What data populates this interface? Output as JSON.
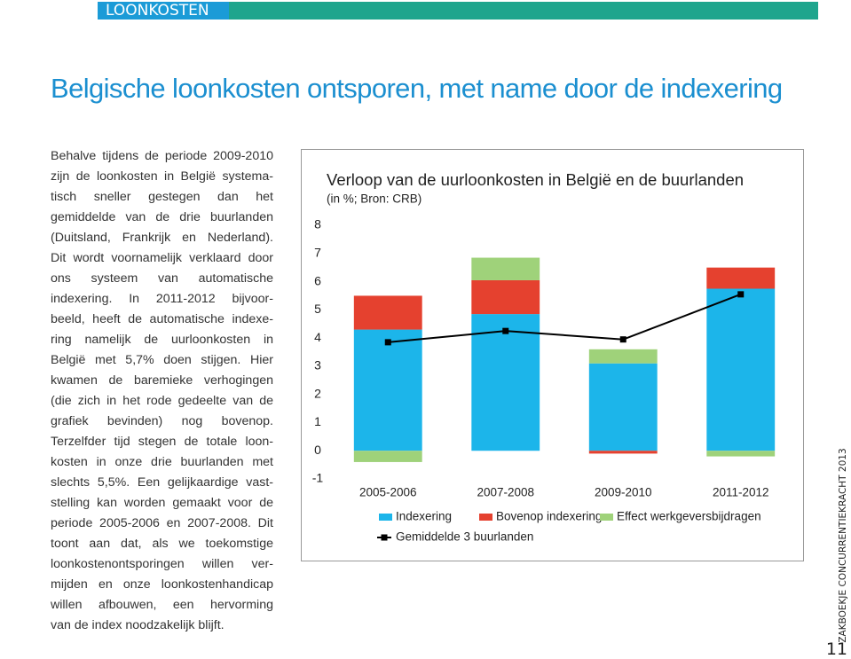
{
  "header": {
    "section": "LOONKOSTEN",
    "title": "Belgische loonkosten ontsporen, met name door de indexering"
  },
  "body": {
    "lines": [
      "Behalve tijdens de periode 2009-2010",
      "zijn de loonkosten in België systema-",
      "tisch sneller gestegen dan het",
      "gemiddelde van de drie buurlanden",
      "(Duitsland, Frankrijk en Nederland).",
      "Dit wordt voornamelijk verklaard door",
      "ons systeem van automatische",
      "indexering. In 2011-2012 bijvoor-",
      "beeld, heeft de automatische indexe-",
      "ring namelijk de uurloonkosten in",
      "België met 5,7% doen stijgen. Hier",
      "kwamen de baremieke verhogingen",
      "(die zich in het rode gedeelte van de",
      "grafiek bevinden) nog bovenop.",
      "Terzelfder tijd stegen de totale loon-",
      "kosten in onze drie buurlanden met",
      "slechts 5,5%. Een gelijkaardige vast-",
      "stelling kan worden gemaakt voor de",
      "periode 2005-2006 en 2007-2008. Dit",
      "toont aan dat, als we toekomstige",
      "loonkostenontsporingen willen ver-",
      "mijden en onze loonkostenhandicap",
      "willen afbouwen, een hervorming",
      "van de index noodzakelijk blijft."
    ]
  },
  "footer": {
    "running_title": "ZAKBOEKJE CONCURRENTIEKRACHT 2013",
    "page_number": "11"
  },
  "chart_data": {
    "type": "bar",
    "stacked": true,
    "title": "Verloop van de uurloonkosten in België en de buurlanden",
    "subtitle": "(in %; Bron: CRB)",
    "categories": [
      "2005-2006",
      "2007-2008",
      "2009-2010",
      "2011-2012"
    ],
    "series": [
      {
        "name": "Indexering",
        "color": "#1cb5ea",
        "values": [
          4.3,
          4.85,
          3.1,
          5.75
        ]
      },
      {
        "name": "Bovenop indexering",
        "color": "#e5412f",
        "values": [
          1.2,
          1.2,
          -0.1,
          0.75
        ]
      },
      {
        "name": "Effect werkgeversbijdragen",
        "color": "#9fd27a",
        "values": [
          -0.4,
          0.8,
          0.5,
          -0.2
        ]
      },
      {
        "name": "Gemiddelde 3 buurlanden",
        "color": "#000000",
        "type": "line",
        "values": [
          3.85,
          4.25,
          3.95,
          5.55
        ]
      }
    ],
    "ylim": [
      -1,
      8
    ],
    "yticks": [
      -1,
      0,
      1,
      2,
      3,
      4,
      5,
      6,
      7,
      8
    ],
    "grid": false
  }
}
